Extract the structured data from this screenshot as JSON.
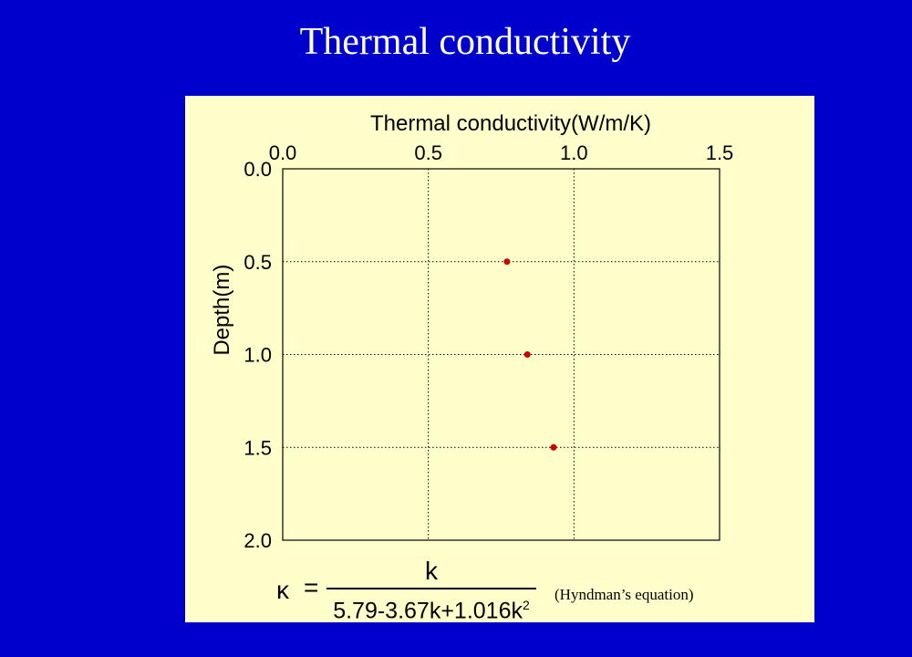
{
  "slide": {
    "title": "Thermal conductivity",
    "background_color": "#0000cc",
    "panel_color": "#ffffcc"
  },
  "chart_data": {
    "type": "scatter",
    "title": "Thermal conductivity(W/m/K)",
    "xlabel": "",
    "ylabel": "Depth(m)",
    "xlim": [
      0.0,
      1.5
    ],
    "ylim": [
      0.0,
      2.0
    ],
    "y_inverted": true,
    "x_axis_position": "top",
    "xticks": [
      "0.0",
      "0.5",
      "1.0",
      "1.5"
    ],
    "yticks": [
      "0.0",
      "0.5",
      "1.0",
      "1.5",
      "2.0"
    ],
    "grid": "dotted",
    "marker_color": "#cc0000",
    "points": [
      {
        "x": 0.77,
        "y": 0.5
      },
      {
        "x": 0.84,
        "y": 1.0
      },
      {
        "x": 0.93,
        "y": 1.5
      }
    ]
  },
  "formula": {
    "lhs": "κ",
    "equals": "=",
    "numerator": "k",
    "denominator_main": "5.79-3.67k+1.016k",
    "denominator_exp": "2",
    "caption": "(Hyndman’s equation)"
  }
}
